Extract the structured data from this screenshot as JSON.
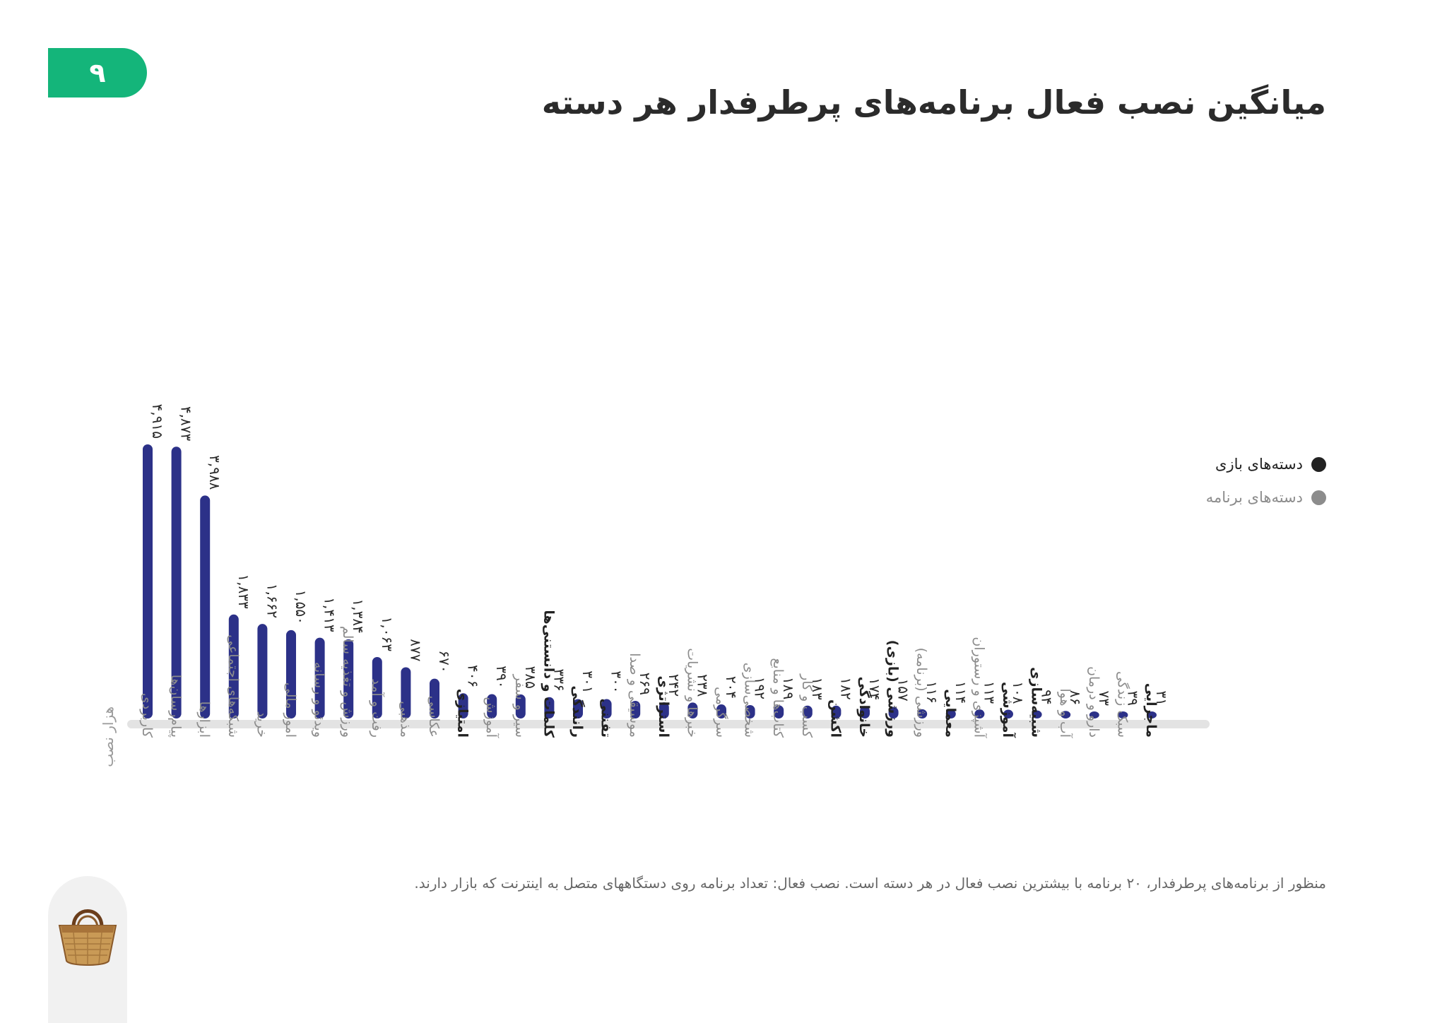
{
  "page": {
    "number": "۹"
  },
  "title": "میانگین نصب فعال برنامه‌های پرطرفدار هر دسته",
  "legend": [
    {
      "label": "دسته‌های بازی",
      "color": "#222222"
    },
    {
      "label": "دسته‌های برنامه",
      "color": "#8c8c8c"
    }
  ],
  "footnote": "منظور از برنامه‌های پرطرفدار، ۲۰ برنامه با بیشترین نصب فعال در هر دسته است. نصب فعال: تعداد برنامه روی دستگاههای متصل به اینترنت که بازار دارند.",
  "colors": {
    "bar": "#2c3188",
    "baseline": "#e3e3e3",
    "game_label": "#222222",
    "app_label": "#8c8c8c",
    "badge": "#14b57a"
  },
  "icons": {
    "logo": "basket-icon"
  },
  "chart_data": {
    "type": "bar",
    "ylabel": "هزار نصب",
    "ylim": [
      0,
      5000
    ],
    "categories": [
      "کاربردی",
      "پیام‌رسان‌ها",
      "ابزارها",
      "شبکه‌های اجتماعی",
      "خرید",
      "امور مالی",
      "ویدئو و رسانه",
      "ورزش و تغذیه سالم",
      "رفت و آمد",
      "مذهبی",
      "عکاسی",
      "امتیازی",
      "آموزش",
      "سیر و سفر",
      "کلمات و دانستنی‌ها",
      "رانندگی",
      "تفننی",
      "موسیقی و صدا",
      "استراتژی",
      "خبرها و نشریات",
      "سرگرمی",
      "شخصی‌سازی",
      "کتاب‌ها و منابع",
      "کسب و کار",
      "اکشن",
      "خانوادگی",
      "ورزشی (بازی)",
      "ورزشی (برنامه)",
      "معمایی",
      "آشپزی و رستوران",
      "آموزشی",
      "شبیه‌سازی",
      "آب و هوا",
      "دارو و درمان",
      "سبک زندگی",
      "ماجرایی"
    ],
    "values": [
      4915,
      4873,
      3988,
      1833,
      1662,
      1550,
      1413,
      1384,
      1063,
      877,
      670,
      406,
      390,
      385,
      336,
      301,
      300,
      269,
      242,
      238,
      204,
      192,
      189,
      183,
      182,
      174,
      157,
      116,
      114,
      113,
      108,
      94,
      86,
      73,
      39,
      31
    ],
    "value_labels": [
      "۴,۹۱۵",
      "۴,۸۷۳",
      "۳,۹۸۸",
      "۱,۸۳۳",
      "۱,۶۶۲",
      "۱,۵۵۰",
      "۱,۴۱۳",
      "۱,۳۸۴",
      "۱,۰۶۳",
      "۸۷۷",
      "۶۷۰",
      "۴۰۶",
      "۳۹۰",
      "۳۸۵",
      "۳۳۶",
      "۳۰۱",
      "۳۰۰",
      "۲۶۹",
      "۲۴۲",
      "۲۳۸",
      "۲۰۴",
      "۱۹۲",
      "۱۸۹",
      "۱۸۳",
      "۱۸۲",
      "۱۷۴",
      "۱۵۷",
      "۱۱۶",
      "۱۱۴",
      "۱۱۳",
      "۱۰۸",
      "۹۴",
      "۸۶",
      "۷۳",
      "۳۹",
      "۳۱"
    ],
    "group": [
      "app",
      "app",
      "app",
      "app",
      "app",
      "app",
      "app",
      "app",
      "app",
      "app",
      "app",
      "game",
      "app",
      "app",
      "game",
      "game",
      "game",
      "app",
      "game",
      "app",
      "app",
      "app",
      "app",
      "app",
      "game",
      "game",
      "game",
      "app",
      "game",
      "app",
      "game",
      "game",
      "app",
      "app",
      "app",
      "game"
    ]
  }
}
